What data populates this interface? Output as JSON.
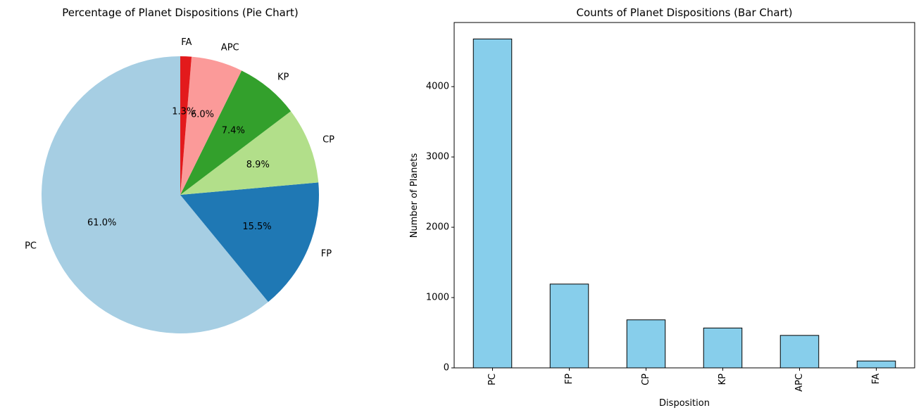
{
  "chart_data": [
    {
      "type": "pie",
      "title": "Percentage of Planet Dispositions (Pie Chart)",
      "labels": [
        "PC",
        "FP",
        "CP",
        "KP",
        "APC",
        "FA"
      ],
      "values": [
        61.0,
        15.5,
        8.9,
        7.4,
        6.0,
        1.3
      ],
      "pct_labels": [
        "61.0%",
        "15.5%",
        "8.9%",
        "7.4%",
        "6.0%",
        "1.3%"
      ],
      "colors": [
        "#a6cee3",
        "#1f78b4",
        "#b2df8a",
        "#33a02c",
        "#fb9a99",
        "#e31a1c"
      ],
      "start_angle_deg": 90,
      "direction": "counterclockwise"
    },
    {
      "type": "bar",
      "title": "Counts of Planet Dispositions (Bar Chart)",
      "categories": [
        "PC",
        "FP",
        "CP",
        "KP",
        "APC",
        "FA"
      ],
      "values": [
        4678,
        1192,
        683,
        567,
        462,
        98
      ],
      "xlabel": "Disposition",
      "ylabel": "Number of Planets",
      "ylim": [
        0,
        4912
      ],
      "yticks": [
        0,
        1000,
        2000,
        3000,
        4000
      ],
      "bar_color": "#87ceeb",
      "edge_color": "#000000",
      "grid": false
    }
  ]
}
